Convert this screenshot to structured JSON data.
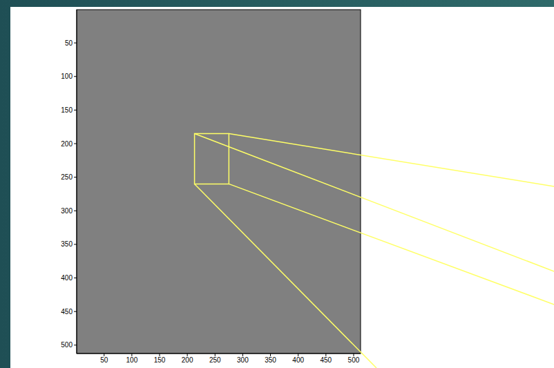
{
  "chart_data": {
    "type": "image",
    "xlim": [
      0.5,
      512.5
    ],
    "ylim": [
      0.5,
      512.5
    ],
    "xticks": [
      50,
      100,
      150,
      200,
      250,
      300,
      350,
      400,
      450,
      500
    ],
    "yticks": [
      50,
      100,
      150,
      200,
      250,
      300,
      350,
      400,
      450,
      500
    ],
    "color": "#808080",
    "highlight": {
      "x": [
        213,
        275
      ],
      "y": [
        185,
        260
      ]
    }
  }
}
